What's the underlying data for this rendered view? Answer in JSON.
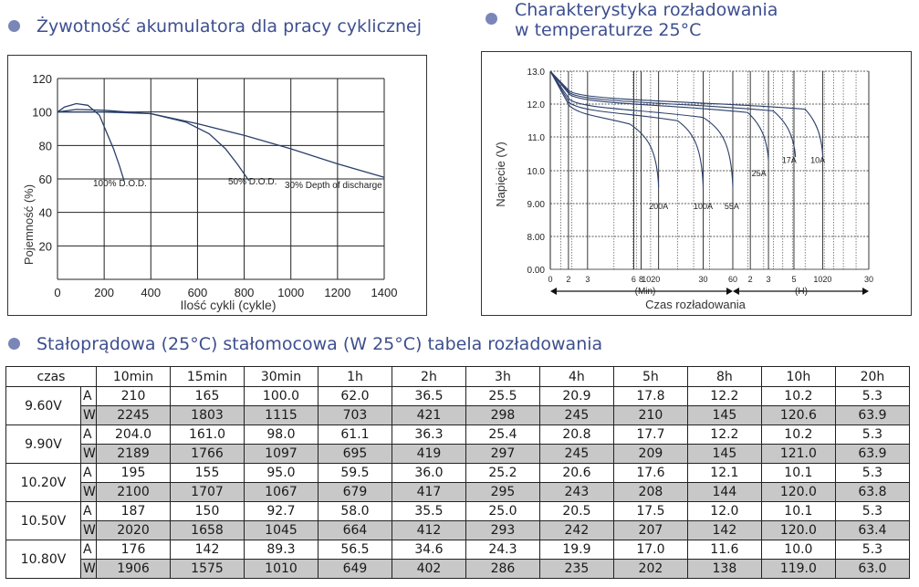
{
  "headings": {
    "cycle_life": "Żywotność akumulatora dla pracy cyklicznej",
    "discharge_line1": "Charakterystyka rozładowania",
    "discharge_line2": "w temperaturze 25°C",
    "table": "Stałoprądowa (25°C) stałomocowa (W 25°C) tabela rozładowania"
  },
  "colors": {
    "heading": "#3d4f8f",
    "bullet": "#7a86b8",
    "curve": "#2b3f6b",
    "w_row": "#c8c8c8"
  },
  "chart_data": [
    {
      "type": "line",
      "title": "Żywotność akumulatora dla pracy cyklicznej",
      "xlabel": "Ilość cykli (cykle)",
      "ylabel": "Pojemność (%)",
      "xlim": [
        0,
        1400
      ],
      "ylim": [
        0,
        120
      ],
      "xticks": [
        0,
        200,
        400,
        600,
        800,
        1000,
        1200,
        1400
      ],
      "yticks": [
        20,
        40,
        60,
        80,
        100,
        120
      ],
      "grid": true,
      "series": [
        {
          "name": "100% D.O.D.",
          "x": [
            0,
            30,
            80,
            130,
            180,
            210,
            240,
            265,
            285
          ],
          "y": [
            100,
            103,
            105,
            104,
            98,
            88,
            78,
            68,
            59
          ]
        },
        {
          "name": "50% D.O.D.",
          "x": [
            0,
            80,
            200,
            400,
            550,
            650,
            720,
            770,
            800,
            820
          ],
          "y": [
            100,
            101.5,
            101,
            99,
            94,
            87,
            78,
            69,
            63,
            59
          ]
        },
        {
          "name": "30% Depth of  discharge",
          "x": [
            0,
            200,
            400,
            600,
            800,
            1000,
            1200,
            1400
          ],
          "y": [
            100,
            100,
            99,
            93,
            86,
            78,
            69,
            61
          ]
        }
      ]
    },
    {
      "type": "line",
      "title": "Charakterystyka rozładowania w temperaturze 25°C",
      "xlabel": "Czas rozładowania",
      "ylabel": "Napięcie (V)",
      "ylim": [
        0,
        13
      ],
      "yticks": [
        "0.00",
        "8.00",
        "9.00",
        "10.0",
        "11.0",
        "12.0",
        "13.0"
      ],
      "grid": true,
      "x_ticks_min": [
        "0",
        "2",
        "3",
        "6",
        "8",
        "1020",
        "30",
        "60"
      ],
      "x_ticks_h": [
        "2",
        "3",
        "5",
        "1020",
        "30"
      ],
      "x_unit_min": "(Min)",
      "x_unit_h": "(H)",
      "series": [
        {
          "name": "200A"
        },
        {
          "name": "100A"
        },
        {
          "name": "55A"
        },
        {
          "name": "25A"
        },
        {
          "name": "17A"
        },
        {
          "name": "10A"
        }
      ]
    }
  ],
  "table": {
    "corner": "czas",
    "times": [
      "10min",
      "15min",
      "30min",
      "1h",
      "2h",
      "3h",
      "4h",
      "5h",
      "8h",
      "10h",
      "20h"
    ],
    "rows": [
      {
        "voltage": "9.60V",
        "A": [
          "210",
          "165",
          "100.0",
          "62.0",
          "36.5",
          "25.5",
          "20.9",
          "17.8",
          "12.2",
          "10.2",
          "5.3"
        ],
        "W": [
          "2245",
          "1803",
          "1115",
          "703",
          "421",
          "298",
          "245",
          "210",
          "145",
          "120.6",
          "63.9"
        ]
      },
      {
        "voltage": "9.90V",
        "A": [
          "204.0",
          "161.0",
          "98.0",
          "61.1",
          "36.3",
          "25.4",
          "20.8",
          "17.7",
          "12.2",
          "10.2",
          "5.3"
        ],
        "W": [
          "2189",
          "1766",
          "1097",
          "695",
          "419",
          "297",
          "245",
          "209",
          "145",
          "121.0",
          "63.9"
        ]
      },
      {
        "voltage": "10.20V",
        "A": [
          "195",
          "155",
          "95.0",
          "59.5",
          "36.0",
          "25.2",
          "20.6",
          "17.6",
          "12.1",
          "10.1",
          "5.3"
        ],
        "W": [
          "2100",
          "1707",
          "1067",
          "679",
          "417",
          "295",
          "243",
          "208",
          "144",
          "120.0",
          "63.8"
        ]
      },
      {
        "voltage": "10.50V",
        "A": [
          "187",
          "150",
          "92.7",
          "58.0",
          "35.5",
          "25.0",
          "20.5",
          "17.5",
          "12.0",
          "10.1",
          "5.3"
        ],
        "W": [
          "2020",
          "1658",
          "1045",
          "664",
          "412",
          "293",
          "242",
          "207",
          "142",
          "120.0",
          "63.4"
        ]
      },
      {
        "voltage": "10.80V",
        "A": [
          "176",
          "142",
          "89.3",
          "56.5",
          "34.6",
          "24.3",
          "19.9",
          "17.0",
          "11.6",
          "10.0",
          "5.3"
        ],
        "W": [
          "1906",
          "1575",
          "1010",
          "649",
          "402",
          "286",
          "235",
          "202",
          "138",
          "119.0",
          "63.0"
        ]
      }
    ],
    "units": {
      "A": "A",
      "W": "W"
    }
  }
}
